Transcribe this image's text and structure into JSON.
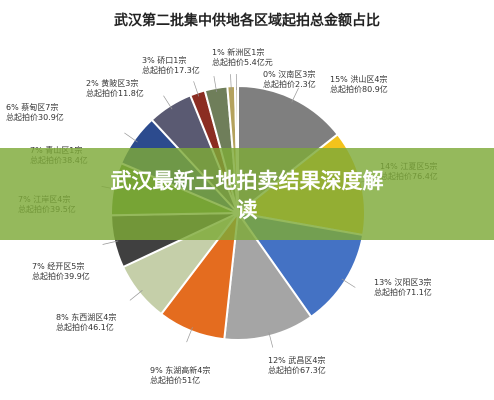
{
  "chart_data": {
    "type": "pie",
    "title": "武汉第二批集中供地各区域起拍总金额占比",
    "slices": [
      {
        "value": 15,
        "color": "#7f7f7f",
        "line1": "15% 洪山区4宗",
        "line2": "总起拍价80.9亿"
      },
      {
        "value": 14,
        "color": "#f2c31c",
        "line1": "14% 江夏区5宗",
        "line2": "总起拍价76.4亿"
      },
      {
        "value": 13,
        "color": "#4472c4",
        "line1": "13% 汉阳区3宗",
        "line2": "总起拍价71.1亿"
      },
      {
        "value": 12,
        "color": "#a5a5a5",
        "line1": "12% 武昌区4宗",
        "line2": "总起拍价67.3亿"
      },
      {
        "value": 9,
        "color": "#e46c1f",
        "line1": "9% 东湖高新4宗",
        "line2": "总起拍价51亿"
      },
      {
        "value": 8,
        "color": "#c5cfa9",
        "line1": "8% 东西湖区4宗",
        "line2": "总起拍价46.1亿"
      },
      {
        "value": 7,
        "color": "#404040",
        "line1": "7% 经开区5宗",
        "line2": "总起拍价39.9亿"
      },
      {
        "value": 7,
        "color": "#5b8a2a",
        "line1": "7% 江岸区4宗",
        "line2": "总起拍价39.5亿"
      },
      {
        "value": 7,
        "color": "#2c4b8e",
        "line1": "7% 青山区1宗",
        "line2": "总起拍价38.4亿"
      },
      {
        "value": 6,
        "color": "#5a5a72",
        "line1": "6% 蔡甸区7宗",
        "line2": "总起拍价30.9亿"
      },
      {
        "value": 2,
        "color": "#8b2d22",
        "line1": "2% 黄陂区3宗",
        "line2": "总起拍价11.8亿"
      },
      {
        "value": 3,
        "color": "#6f7e5a",
        "line1": "3% 硚口1宗",
        "line2": "总起拍价17.3亿"
      },
      {
        "value": 1,
        "color": "#b4a25c",
        "line1": "1% 新洲区1宗",
        "line2": "总起拍价5.4亿元"
      },
      {
        "value": 0.4,
        "color": "#d0cdb6",
        "line1": "0% 汉南区3宗",
        "line2": "总起拍价2.3亿"
      }
    ]
  },
  "banner": {
    "line1": "武汉最新土地拍卖结果深度解",
    "line2": "读"
  }
}
